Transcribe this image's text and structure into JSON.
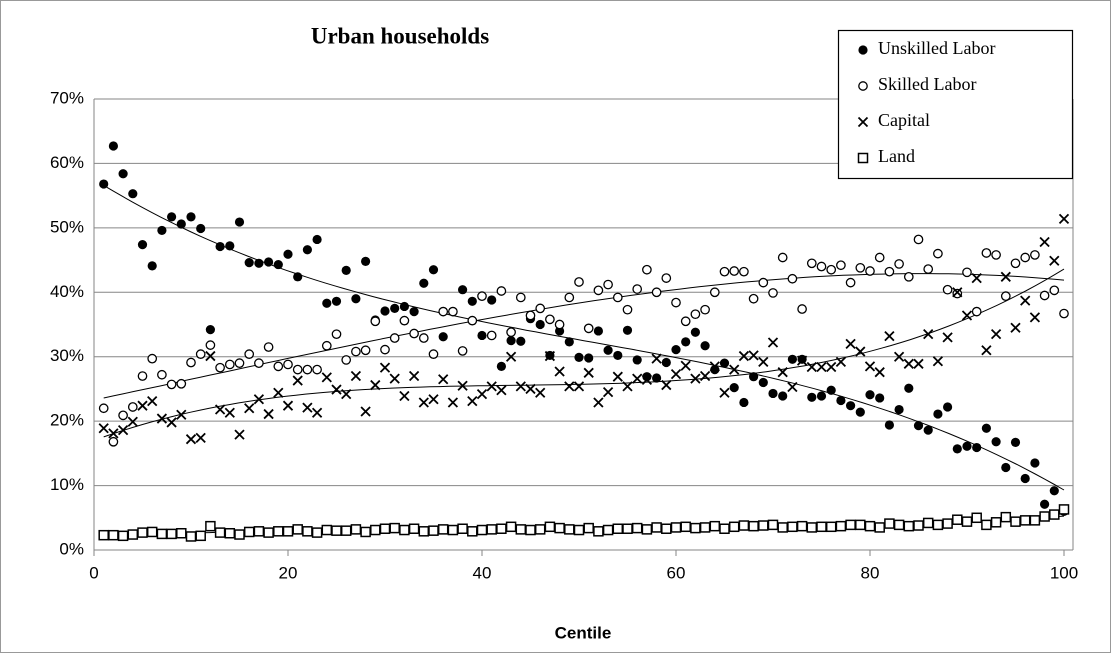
{
  "chart_data": {
    "type": "scatter",
    "title": "Urban households",
    "x_label": "Centile",
    "x": [
      1,
      2,
      3,
      4,
      5,
      6,
      7,
      8,
      9,
      10,
      11,
      12,
      13,
      14,
      15,
      16,
      17,
      18,
      19,
      20,
      21,
      22,
      23,
      24,
      25,
      26,
      27,
      28,
      29,
      30,
      31,
      32,
      33,
      34,
      35,
      36,
      37,
      38,
      39,
      40,
      41,
      42,
      43,
      44,
      45,
      46,
      47,
      48,
      49,
      50,
      51,
      52,
      53,
      54,
      55,
      56,
      57,
      58,
      59,
      60,
      61,
      62,
      63,
      64,
      65,
      66,
      67,
      68,
      69,
      70,
      71,
      72,
      73,
      74,
      75,
      76,
      77,
      78,
      79,
      80,
      81,
      82,
      83,
      84,
      85,
      86,
      87,
      88,
      89,
      90,
      91,
      92,
      93,
      94,
      95,
      96,
      97,
      98,
      99,
      100
    ],
    "series": [
      {
        "name": "Unskilled Labor",
        "color": "#000000",
        "marker": "filled-circle",
        "values": [
          56.8,
          62.7,
          58.4,
          55.3,
          47.4,
          44.1,
          49.6,
          51.7,
          50.6,
          51.7,
          49.9,
          34.2,
          47.1,
          47.2,
          50.9,
          44.6,
          44.5,
          44.7,
          44.3,
          45.9,
          42.4,
          46.6,
          48.2,
          38.3,
          38.6,
          43.4,
          39.0,
          44.8,
          35.7,
          37.1,
          37.5,
          37.8,
          37.0,
          41.4,
          43.5,
          33.1,
          37.0,
          40.4,
          38.6,
          33.3,
          38.8,
          28.5,
          32.5,
          32.4,
          35.9,
          35.0,
          30.2,
          34.0,
          32.3,
          29.9,
          29.8,
          34.0,
          31.0,
          30.2,
          34.1,
          29.5,
          26.9,
          26.7,
          29.1,
          31.1,
          32.3,
          33.8,
          31.7,
          28.0,
          29.0,
          25.2,
          22.9,
          26.9,
          26.0,
          24.3,
          23.9,
          29.6,
          29.6,
          23.7,
          23.9,
          24.8,
          23.2,
          22.4,
          21.4,
          24.1,
          23.6,
          19.4,
          21.8,
          25.1,
          19.3,
          18.6,
          21.1,
          22.2,
          15.7,
          16.1,
          15.9,
          18.9,
          16.8,
          12.8,
          16.7,
          11.1,
          13.5,
          7.1,
          9.2,
          6.0
        ]
      },
      {
        "name": "Skilled Labor",
        "color": "#000000",
        "marker": "open-circle",
        "values": [
          22.0,
          16.8,
          20.9,
          22.2,
          27.0,
          29.7,
          27.2,
          25.7,
          25.8,
          29.1,
          30.4,
          31.8,
          28.3,
          28.8,
          29.0,
          30.4,
          29.0,
          31.5,
          28.5,
          28.8,
          28.0,
          28.0,
          28.0,
          31.7,
          33.5,
          29.5,
          30.8,
          31.0,
          35.5,
          31.1,
          32.9,
          35.6,
          33.6,
          32.9,
          30.4,
          37.0,
          37.0,
          30.9,
          35.6,
          39.4,
          33.3,
          40.2,
          33.8,
          39.2,
          36.4,
          37.5,
          35.8,
          35.0,
          39.2,
          41.6,
          34.4,
          40.3,
          41.2,
          39.2,
          37.3,
          40.5,
          43.5,
          40.0,
          42.2,
          38.4,
          35.5,
          36.6,
          37.3,
          40.0,
          43.2,
          43.3,
          43.2,
          39.0,
          41.5,
          39.9,
          45.4,
          42.1,
          37.4,
          44.5,
          44.0,
          43.5,
          44.2,
          41.5,
          43.8,
          43.3,
          45.4,
          43.2,
          44.4,
          42.4,
          48.2,
          43.6,
          46.0,
          40.4,
          39.8,
          43.1,
          37.0,
          46.1,
          45.8,
          39.4,
          44.5,
          45.4,
          45.8,
          39.5,
          40.3,
          36.7
        ]
      },
      {
        "name": "Capital",
        "color": "#000000",
        "marker": "cross",
        "values": [
          18.9,
          18.1,
          18.6,
          19.9,
          22.4,
          23.1,
          20.4,
          19.8,
          21.0,
          17.2,
          17.4,
          30.1,
          21.8,
          21.3,
          17.9,
          22.0,
          23.4,
          21.1,
          24.4,
          22.4,
          26.3,
          22.1,
          21.3,
          26.8,
          24.9,
          24.2,
          27.0,
          21.5,
          25.6,
          28.3,
          26.6,
          23.9,
          27.0,
          22.9,
          23.4,
          26.5,
          22.9,
          25.5,
          23.1,
          24.2,
          25.4,
          24.8,
          30.0,
          25.4,
          25.0,
          24.4,
          30.1,
          27.7,
          25.4,
          25.4,
          27.5,
          22.9,
          24.5,
          26.9,
          25.4,
          26.6,
          26.4,
          29.7,
          25.6,
          27.3,
          28.6,
          26.6,
          27.0,
          28.5,
          24.4,
          28.0,
          30.1,
          30.2,
          29.2,
          32.2,
          27.6,
          25.3,
          29.4,
          28.4,
          28.4,
          28.4,
          29.2,
          32.0,
          30.8,
          28.5,
          27.6,
          33.2,
          30.0,
          28.9,
          28.9,
          33.5,
          29.3,
          33.0,
          40.0,
          36.4,
          42.2,
          31.0,
          33.5,
          42.4,
          34.5,
          38.7,
          36.1,
          47.8,
          44.9,
          51.4
        ]
      },
      {
        "name": "Land",
        "color": "#000000",
        "marker": "square",
        "values": [
          2.3,
          2.3,
          2.2,
          2.4,
          2.7,
          2.8,
          2.5,
          2.5,
          2.6,
          2.1,
          2.2,
          3.7,
          2.7,
          2.6,
          2.4,
          2.8,
          2.9,
          2.7,
          2.9,
          2.9,
          3.2,
          2.9,
          2.7,
          3.1,
          3.0,
          3.0,
          3.2,
          2.8,
          3.1,
          3.3,
          3.4,
          3.1,
          3.3,
          2.9,
          3.0,
          3.2,
          3.1,
          3.3,
          2.9,
          3.1,
          3.2,
          3.3,
          3.6,
          3.2,
          3.1,
          3.2,
          3.6,
          3.4,
          3.2,
          3.1,
          3.4,
          2.9,
          3.1,
          3.3,
          3.3,
          3.4,
          3.2,
          3.5,
          3.3,
          3.5,
          3.6,
          3.4,
          3.5,
          3.7,
          3.3,
          3.6,
          3.8,
          3.7,
          3.8,
          3.9,
          3.5,
          3.6,
          3.7,
          3.5,
          3.6,
          3.6,
          3.7,
          3.9,
          3.9,
          3.7,
          3.5,
          4.1,
          3.9,
          3.7,
          3.8,
          4.2,
          3.9,
          4.1,
          4.7,
          4.4,
          5.0,
          3.9,
          4.3,
          5.1,
          4.4,
          4.6,
          4.6,
          5.2,
          5.5,
          6.3
        ]
      }
    ],
    "xlim": [
      0,
      100
    ],
    "xticks": [
      0,
      20,
      40,
      60,
      80,
      100
    ],
    "ylim": [
      0,
      70
    ],
    "yticks": [
      {
        "value": 0,
        "label": "0%"
      },
      {
        "value": 10,
        "label": "10%"
      },
      {
        "value": 20,
        "label": "20%"
      },
      {
        "value": 30,
        "label": "30%"
      },
      {
        "value": 40,
        "label": "40%"
      },
      {
        "value": 50,
        "label": "50%"
      },
      {
        "value": 60,
        "label": "60%"
      },
      {
        "value": 70,
        "label": "70%"
      }
    ],
    "grid": true,
    "trendlines": true,
    "legend": "upper right"
  }
}
